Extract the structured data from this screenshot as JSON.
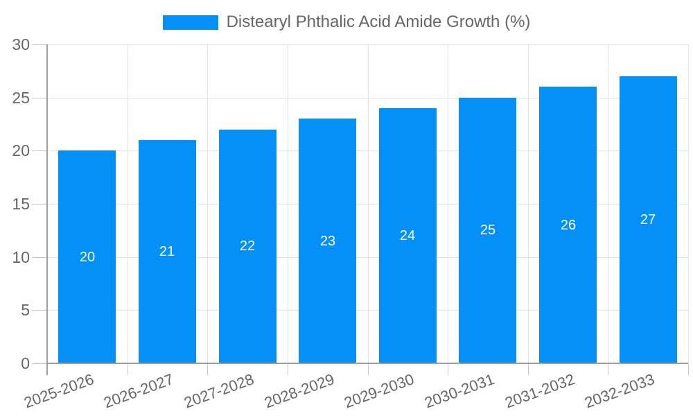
{
  "chart_data": {
    "type": "bar",
    "legend_label": "Distearyl Phthalic Acid Amide Growth (%)",
    "legend_position": "top",
    "categories": [
      "2025-2026",
      "2026-2027",
      "2027-2028",
      "2028-2029",
      "2029-2030",
      "2030-2031",
      "2031-2032",
      "2032-2033"
    ],
    "values": [
      20,
      21,
      22,
      23,
      24,
      25,
      26,
      27
    ],
    "value_labels": [
      "20",
      "21",
      "22",
      "23",
      "24",
      "25",
      "26",
      "27"
    ],
    "title": "",
    "xlabel": "",
    "ylabel": "",
    "ylim": [
      0,
      30
    ],
    "yticks": [
      0,
      5,
      10,
      15,
      20,
      25,
      30
    ],
    "ytick_labels": [
      "0",
      "5",
      "10",
      "15",
      "20",
      "25",
      "30"
    ],
    "grid": true,
    "colors": {
      "bar": "#0590f8",
      "grid": "#e4e4e4",
      "tick": "#c6c6c6",
      "axis": "#9e9e9e",
      "text": "#666666",
      "value_label": "#ffffff",
      "background": "#ffffff"
    }
  }
}
